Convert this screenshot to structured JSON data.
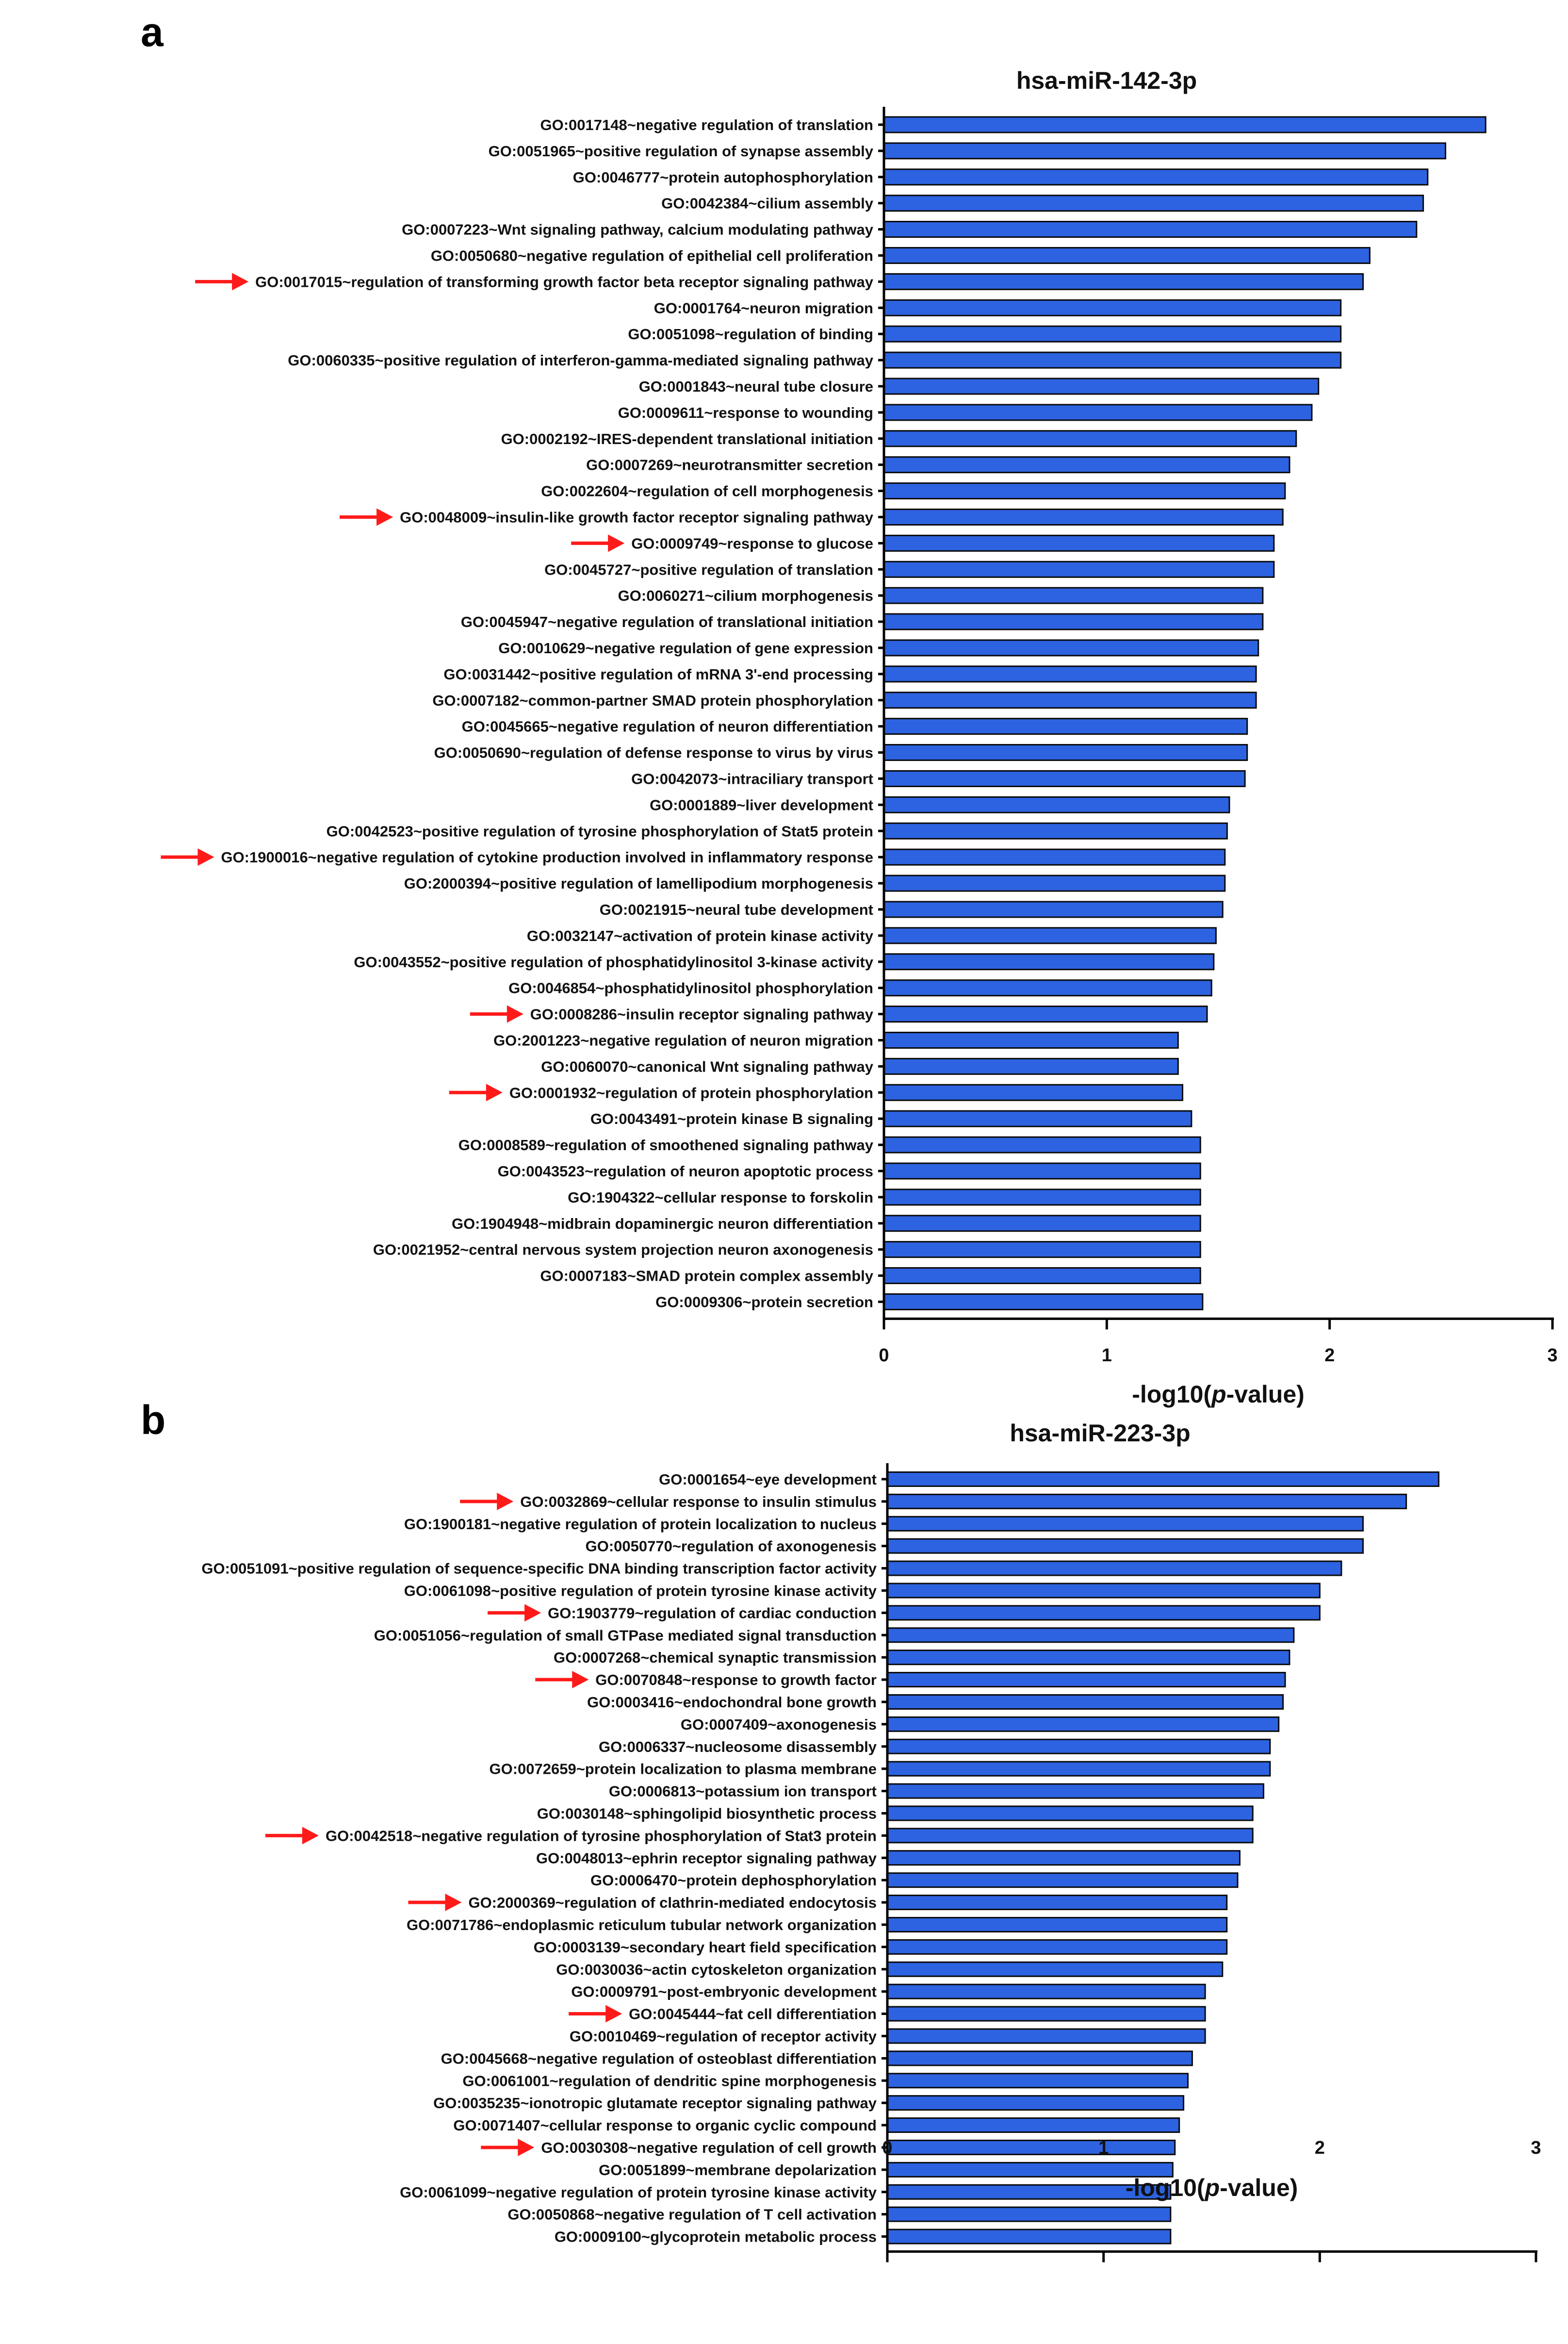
{
  "figure": {
    "panels": [
      "a",
      "b"
    ]
  },
  "colors": {
    "bar": "#2d63e0",
    "arrow": "#ff1a1a"
  },
  "chart_data": [
    {
      "type": "bar",
      "orientation": "horizontal",
      "panel_label": "a",
      "title": "hsa-miR-142-3p",
      "xlabel": "-log10(p-value)",
      "xlabel_parts": [
        "-log10(",
        "p",
        "-value)"
      ],
      "xlim": [
        0,
        3
      ],
      "xticks": [
        "0",
        "1",
        "2",
        "3"
      ],
      "categories": [
        "GO:0017148~negative regulation of translation",
        "GO:0051965~positive regulation of synapse assembly",
        "GO:0046777~protein autophosphorylation",
        "GO:0042384~cilium assembly",
        "GO:0007223~Wnt signaling pathway, calcium modulating pathway",
        "GO:0050680~negative regulation of epithelial cell proliferation",
        "GO:0017015~regulation of transforming growth factor beta receptor signaling pathway",
        "GO:0001764~neuron migration",
        "GO:0051098~regulation of binding",
        "GO:0060335~positive regulation of interferon-gamma-mediated signaling pathway",
        "GO:0001843~neural tube closure",
        "GO:0009611~response to wounding",
        "GO:0002192~IRES-dependent translational initiation",
        "GO:0007269~neurotransmitter secretion",
        "GO:0022604~regulation of cell morphogenesis",
        "GO:0048009~insulin-like growth factor receptor signaling pathway",
        "GO:0009749~response to glucose",
        "GO:0045727~positive regulation of translation",
        "GO:0060271~cilium morphogenesis",
        "GO:0045947~negative regulation of translational initiation",
        "GO:0010629~negative regulation of gene expression",
        "GO:0031442~positive regulation of mRNA 3'-end processing",
        "GO:0007182~common-partner SMAD protein phosphorylation",
        "GO:0045665~negative regulation of neuron differentiation",
        "GO:0050690~regulation of defense response to virus by virus",
        "GO:0042073~intraciliary transport",
        "GO:0001889~liver development",
        "GO:0042523~positive regulation of tyrosine phosphorylation of Stat5 protein",
        "GO:1900016~negative regulation of cytokine production involved in inflammatory response",
        "GO:2000394~positive regulation of lamellipodium morphogenesis",
        "GO:0021915~neural tube development",
        "GO:0032147~activation of protein kinase activity",
        "GO:0043552~positive regulation of phosphatidylinositol 3-kinase activity",
        "GO:0046854~phosphatidylinositol phosphorylation",
        "GO:0008286~insulin receptor signaling pathway",
        "GO:2001223~negative regulation of neuron migration",
        "GO:0060070~canonical Wnt signaling pathway",
        "GO:0001932~regulation of protein phosphorylation",
        "GO:0043491~protein kinase B signaling",
        "GO:0008589~regulation of smoothened signaling pathway",
        "GO:0043523~regulation of neuron apoptotic process",
        "GO:1904322~cellular response to forskolin",
        "GO:1904948~midbrain dopaminergic neuron differentiation",
        "GO:0021952~central nervous system projection neuron axonogenesis",
        "GO:0007183~SMAD protein complex assembly",
        "GO:0009306~protein secretion"
      ],
      "values": [
        2.7,
        2.52,
        2.44,
        2.42,
        2.39,
        2.18,
        2.15,
        2.05,
        2.05,
        2.05,
        1.95,
        1.92,
        1.85,
        1.82,
        1.8,
        1.79,
        1.75,
        1.75,
        1.7,
        1.7,
        1.68,
        1.67,
        1.67,
        1.63,
        1.63,
        1.62,
        1.55,
        1.54,
        1.53,
        1.53,
        1.52,
        1.49,
        1.48,
        1.47,
        1.45,
        1.32,
        1.32,
        1.34,
        1.38,
        1.42,
        1.42,
        1.42,
        1.42,
        1.42,
        1.42,
        1.43
      ],
      "highlighted": [
        6,
        15,
        16,
        28,
        34,
        37
      ]
    },
    {
      "type": "bar",
      "orientation": "horizontal",
      "panel_label": "b",
      "title": "hsa-miR-223-3p",
      "xlabel": "-log10(p-value)",
      "xlabel_parts": [
        "-log10(",
        "p",
        "-value)"
      ],
      "xlim": [
        0,
        3
      ],
      "xticks": [
        "0",
        "1",
        "2",
        "3"
      ],
      "categories": [
        "GO:0001654~eye development",
        "GO:0032869~cellular response to insulin stimulus",
        "GO:1900181~negative regulation of protein localization to nucleus",
        "GO:0050770~regulation of axonogenesis",
        "GO:0051091~positive regulation of sequence-specific DNA binding transcription factor activity",
        "GO:0061098~positive regulation of protein tyrosine kinase activity",
        "GO:1903779~regulation of cardiac conduction",
        "GO:0051056~regulation of small GTPase mediated signal transduction",
        "GO:0007268~chemical synaptic transmission",
        "GO:0070848~response to growth factor",
        "GO:0003416~endochondral bone growth",
        "GO:0007409~axonogenesis",
        "GO:0006337~nucleosome disassembly",
        "GO:0072659~protein localization to plasma membrane",
        "GO:0006813~potassium ion transport",
        "GO:0030148~sphingolipid biosynthetic process",
        "GO:0042518~negative regulation of tyrosine phosphorylation of Stat3 protein",
        "GO:0048013~ephrin receptor signaling pathway",
        "GO:0006470~protein dephosphorylation",
        "GO:2000369~regulation of clathrin-mediated endocytosis",
        "GO:0071786~endoplasmic reticulum tubular network organization",
        "GO:0003139~secondary heart field specification",
        "GO:0030036~actin cytoskeleton organization",
        "GO:0009791~post-embryonic development",
        "GO:0045444~fat cell differentiation",
        "GO:0010469~regulation of receptor activity",
        "GO:0045668~negative regulation of osteoblast differentiation",
        "GO:0061001~regulation of dendritic spine morphogenesis",
        "GO:0035235~ionotropic glutamate receptor signaling pathway",
        "GO:0071407~cellular response to organic cyclic compound",
        "GO:0030308~negative regulation of cell growth",
        "GO:0051899~membrane depolarization",
        "GO:0061099~negative regulation of protein tyrosine kinase activity",
        "GO:0050868~negative regulation of T cell activation",
        "GO:0009100~glycoprotein metabolic process"
      ],
      "values": [
        2.55,
        2.4,
        2.2,
        2.2,
        2.1,
        2.0,
        2.0,
        1.88,
        1.86,
        1.84,
        1.83,
        1.81,
        1.77,
        1.77,
        1.74,
        1.69,
        1.69,
        1.63,
        1.62,
        1.57,
        1.57,
        1.57,
        1.55,
        1.47,
        1.47,
        1.47,
        1.41,
        1.39,
        1.37,
        1.35,
        1.33,
        1.32,
        1.31,
        1.31,
        1.31
      ],
      "highlighted": [
        1,
        6,
        9,
        16,
        19,
        24,
        30
      ]
    }
  ]
}
